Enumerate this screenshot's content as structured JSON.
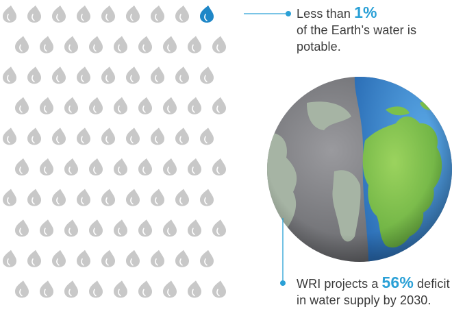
{
  "graphic": {
    "drops": {
      "rows": 10,
      "per_row": 9,
      "highlighted": 1,
      "fill": "#c8c8c8",
      "highlight": "#1f87c7"
    },
    "colors": {
      "accent": "#2aa0d6",
      "text": "#3a3a3a",
      "ocean": "#2f7fc4",
      "land": "#7cc04b"
    }
  },
  "callouts": {
    "top": {
      "prefix": "Less than ",
      "value": "1%",
      "rest": "of the Earth’s water is potable."
    },
    "bottom": {
      "prefix": "WRI projects a ",
      "value": "56%",
      "mid": " deficit",
      "rest": "in water supply by 2030."
    }
  }
}
